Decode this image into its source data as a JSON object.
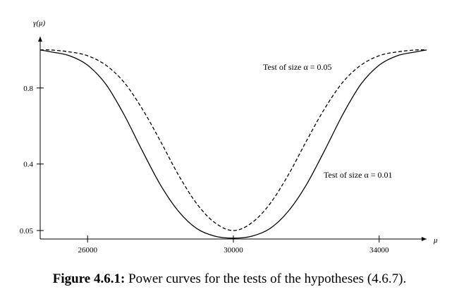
{
  "chart_data": {
    "type": "line",
    "ylabel": "γ(μ)",
    "xlabel": "μ",
    "xlim": [
      24700,
      35300
    ],
    "ylim": [
      0.0,
      1.08
    ],
    "x_ticks": [
      {
        "value": 26000,
        "label": "26000"
      },
      {
        "value": 30000,
        "label": "30000"
      },
      {
        "value": 34000,
        "label": "34000"
      }
    ],
    "y_ticks": [
      {
        "value": 0.05,
        "label": "0.05"
      },
      {
        "value": 0.4,
        "label": "0.4"
      },
      {
        "value": 0.8,
        "label": "0.8"
      }
    ],
    "series": [
      {
        "name": "Test of size α = 0.05",
        "style": "dashed",
        "x": [
          24700,
          25000,
          25500,
          26000,
          26500,
          27000,
          27500,
          28000,
          28500,
          29000,
          29500,
          30000,
          30500,
          31000,
          31500,
          32000,
          32500,
          33000,
          33500,
          34000,
          34500,
          35000,
          35300
        ],
        "y": [
          1.0,
          1.0,
          0.99,
          0.97,
          0.92,
          0.83,
          0.69,
          0.52,
          0.34,
          0.19,
          0.09,
          0.05,
          0.09,
          0.19,
          0.34,
          0.52,
          0.69,
          0.83,
          0.92,
          0.97,
          0.99,
          1.0,
          1.0
        ]
      },
      {
        "name": "Test of size α = 0.01",
        "style": "solid",
        "x": [
          24700,
          25000,
          25500,
          26000,
          26500,
          27000,
          27500,
          28000,
          28500,
          29000,
          29500,
          30000,
          30500,
          31000,
          31500,
          32000,
          32500,
          33000,
          33500,
          34000,
          34500,
          35000,
          35300
        ],
        "y": [
          1.0,
          0.99,
          0.97,
          0.92,
          0.82,
          0.66,
          0.47,
          0.29,
          0.15,
          0.06,
          0.02,
          0.01,
          0.02,
          0.06,
          0.15,
          0.29,
          0.47,
          0.66,
          0.82,
          0.92,
          0.97,
          0.99,
          1.0
        ]
      }
    ],
    "annotations": [
      {
        "text": "Test of size α = 0.05",
        "series": 0
      },
      {
        "text": "Test of size α = 0.01",
        "series": 1
      }
    ],
    "grid": false,
    "legend": "none"
  },
  "caption": {
    "lead": "Figure 4.6.1:",
    "text": " Power curves for the tests of the hypotheses (4.6.7)."
  }
}
